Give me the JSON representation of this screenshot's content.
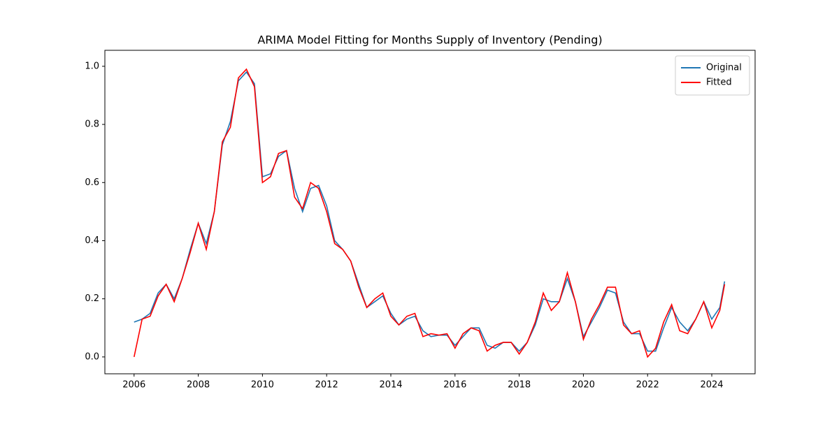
{
  "chart_data": {
    "type": "line",
    "title": "ARIMA Model Fitting for Months Supply of Inventory (Pending)",
    "x": [
      2006.0,
      2006.25,
      2006.5,
      2006.75,
      2007.0,
      2007.25,
      2007.5,
      2007.75,
      2008.0,
      2008.25,
      2008.5,
      2008.75,
      2009.0,
      2009.25,
      2009.5,
      2009.75,
      2010.0,
      2010.25,
      2010.5,
      2010.75,
      2011.0,
      2011.25,
      2011.5,
      2011.75,
      2012.0,
      2012.25,
      2012.5,
      2012.75,
      2013.0,
      2013.25,
      2013.5,
      2013.75,
      2014.0,
      2014.25,
      2014.5,
      2014.75,
      2015.0,
      2015.25,
      2015.5,
      2015.75,
      2016.0,
      2016.25,
      2016.5,
      2016.75,
      2017.0,
      2017.25,
      2017.5,
      2017.75,
      2018.0,
      2018.25,
      2018.5,
      2018.75,
      2019.0,
      2019.25,
      2019.5,
      2019.75,
      2020.0,
      2020.25,
      2020.5,
      2020.75,
      2021.0,
      2021.25,
      2021.5,
      2021.75,
      2022.0,
      2022.25,
      2022.5,
      2022.75,
      2023.0,
      2023.25,
      2023.5,
      2023.75,
      2024.0,
      2024.25,
      2024.4
    ],
    "series": [
      {
        "name": "Original",
        "color": "#1f77b4",
        "values": [
          0.12,
          0.13,
          0.15,
          0.22,
          0.25,
          0.2,
          0.27,
          0.37,
          0.46,
          0.39,
          0.5,
          0.73,
          0.81,
          0.95,
          0.98,
          0.94,
          0.62,
          0.63,
          0.69,
          0.71,
          0.58,
          0.5,
          0.58,
          0.59,
          0.52,
          0.4,
          0.37,
          0.33,
          0.25,
          0.17,
          0.19,
          0.21,
          0.15,
          0.11,
          0.13,
          0.14,
          0.09,
          0.07,
          0.075,
          0.075,
          0.04,
          0.07,
          0.1,
          0.1,
          0.04,
          0.03,
          0.05,
          0.05,
          0.02,
          0.05,
          0.11,
          0.2,
          0.19,
          0.19,
          0.27,
          0.19,
          0.07,
          0.12,
          0.17,
          0.23,
          0.22,
          0.12,
          0.08,
          0.08,
          0.02,
          0.02,
          0.1,
          0.17,
          0.12,
          0.09,
          0.13,
          0.19,
          0.13,
          0.17,
          0.26
        ]
      },
      {
        "name": "Fitted",
        "color": "#ff0000",
        "values": [
          0.0,
          0.13,
          0.14,
          0.21,
          0.25,
          0.19,
          0.27,
          0.36,
          0.46,
          0.37,
          0.5,
          0.74,
          0.79,
          0.96,
          0.99,
          0.93,
          0.6,
          0.62,
          0.7,
          0.71,
          0.55,
          0.51,
          0.6,
          0.58,
          0.5,
          0.39,
          0.37,
          0.33,
          0.24,
          0.17,
          0.2,
          0.22,
          0.14,
          0.11,
          0.14,
          0.15,
          0.07,
          0.08,
          0.075,
          0.08,
          0.03,
          0.08,
          0.1,
          0.09,
          0.02,
          0.04,
          0.05,
          0.05,
          0.01,
          0.05,
          0.12,
          0.22,
          0.16,
          0.19,
          0.29,
          0.19,
          0.06,
          0.13,
          0.18,
          0.24,
          0.24,
          0.11,
          0.08,
          0.09,
          0.0,
          0.03,
          0.12,
          0.18,
          0.09,
          0.08,
          0.13,
          0.19,
          0.1,
          0.16,
          0.25
        ]
      }
    ],
    "xlim": [
      2005.09,
      2025.35
    ],
    "xticks": [
      2006,
      2008,
      2010,
      2012,
      2014,
      2016,
      2018,
      2020,
      2022,
      2024
    ],
    "ylim": [
      -0.058,
      1.055
    ],
    "yticks": [
      {
        "value": 0,
        "label": "0.0"
      },
      {
        "value": 0.2,
        "label": "0.2"
      },
      {
        "value": 0.4,
        "label": "0.4"
      },
      {
        "value": 0.6,
        "label": "0.6"
      },
      {
        "value": 0.8,
        "label": "0.8"
      },
      {
        "value": 1.0,
        "label": "1.0"
      }
    ],
    "legend": "upper right",
    "grid": false
  }
}
